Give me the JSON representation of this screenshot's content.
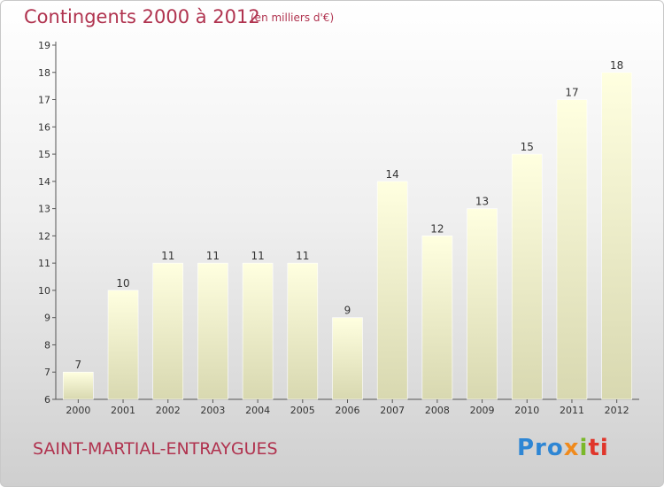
{
  "header": {
    "title": "Contingents 2000 à 2012",
    "subtitle": "(en milliers d'€)"
  },
  "footer": {
    "commune": "SAINT-MARTIAL-ENTRAYGUES",
    "logo": {
      "part1": "Pro",
      "part2": "x",
      "part3": "i",
      "part4": "ti"
    }
  },
  "colors": {
    "title": "#b0334f",
    "bar_top": "#ffffe0",
    "bar_bottom": "#d8d8b0"
  },
  "chart_data": {
    "type": "bar",
    "title": "Contingents 2000 à 2012",
    "subtitle": "(en milliers d'€)",
    "categories": [
      "2000",
      "2001",
      "2002",
      "2003",
      "2004",
      "2005",
      "2006",
      "2007",
      "2008",
      "2009",
      "2010",
      "2011",
      "2012"
    ],
    "values": [
      7,
      10,
      11,
      11,
      11,
      11,
      9,
      14,
      12,
      13,
      15,
      17,
      18
    ],
    "ylim": [
      6,
      19
    ],
    "yticks": [
      6,
      7,
      8,
      9,
      10,
      11,
      12,
      13,
      14,
      15,
      16,
      17,
      18,
      19
    ],
    "grid": false,
    "legend": "none"
  }
}
